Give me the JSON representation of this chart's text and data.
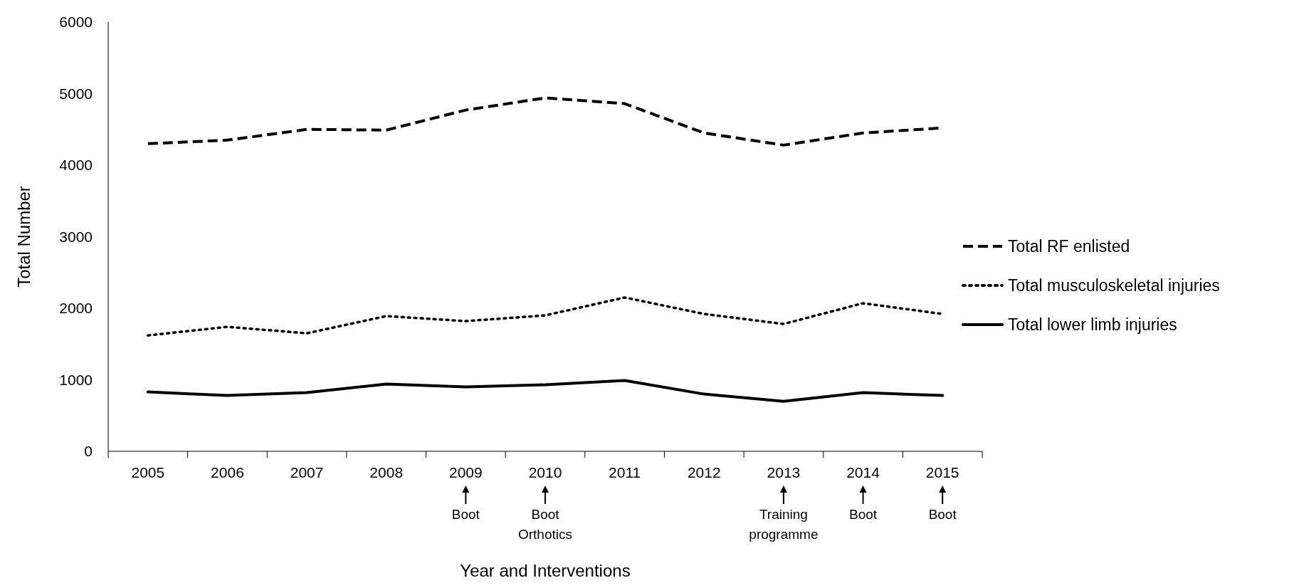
{
  "chart_data": {
    "type": "line",
    "xlabel": "Year and Interventions",
    "ylabel": "Total Number",
    "categories": [
      "2005",
      "2006",
      "2007",
      "2008",
      "2009\nBoot",
      "2010\nBoot\nOrthotics",
      "2011",
      "2012",
      "2013\nTraining\nprogramme",
      "2014\nBoot",
      "2015\nBoot"
    ],
    "series": [
      {
        "name": "Total RF enlisted",
        "color": "#000000",
        "line_style": "dashed",
        "values": [
          4300,
          4350,
          4500,
          4490,
          4770,
          4940,
          4860,
          4450,
          4280,
          4450,
          4520
        ]
      },
      {
        "name": "Total musculoskeletal injuries",
        "color": "#000000",
        "line_style": "dotted",
        "values": [
          1620,
          1740,
          1650,
          1890,
          1820,
          1900,
          2150,
          1920,
          1780,
          2070,
          1920
        ]
      },
      {
        "name": "Total lower limb injuries",
        "color": "#000000",
        "line_style": "solid",
        "values": [
          830,
          780,
          820,
          940,
          900,
          930,
          990,
          800,
          700,
          820,
          780
        ]
      }
    ],
    "ylim": [
      0,
      6000
    ],
    "yticks": [
      0,
      1000,
      2000,
      3000,
      4000,
      5000,
      6000
    ],
    "legend": "right",
    "grid": false
  }
}
